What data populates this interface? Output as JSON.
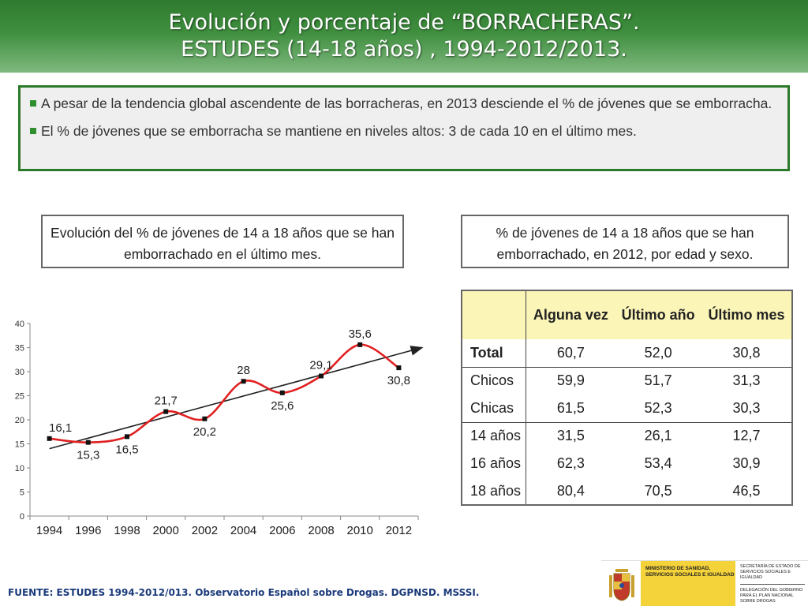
{
  "header": {
    "title_line1": "Evolución y porcentaje de “BORRACHERAS”.",
    "title_line2": "ESTUDES (14-18 años) , 1994-2012/2013."
  },
  "bullets": [
    "A pesar de la tendencia global ascendente de las borracheras, en 2013 desciende el % de jóvenes que se emborracha.",
    "El % de jóvenes que se emborracha se mantiene en niveles altos: 3 de cada 10 en el último mes."
  ],
  "captions": {
    "left": "Evolución del % de jóvenes de 14 a 18 años que se han emborrachado en el último mes.",
    "right": "% de jóvenes de 14 a 18 años que se han emborrachado, en 2012, por edad y sexo."
  },
  "chart_data": {
    "type": "line",
    "title": "",
    "xlabel": "",
    "ylabel": "",
    "x": [
      1994,
      1996,
      1998,
      2000,
      2002,
      2004,
      2006,
      2008,
      2010,
      2012
    ],
    "x_tick_labels": [
      "1994",
      "1996",
      "1998",
      "2000",
      "2002",
      "2004",
      "2006",
      "2008",
      "2010",
      "2012"
    ],
    "y_ticks": [
      0,
      5,
      10,
      15,
      20,
      25,
      30,
      35,
      40
    ],
    "ylim": [
      0,
      40
    ],
    "grid": false,
    "series": [
      {
        "values": [
          16.1,
          15.3,
          16.5,
          21.7,
          20.2,
          28,
          25.6,
          29.1,
          35.6,
          30.8
        ],
        "data_labels": [
          "16,1",
          "15,3",
          "16,5",
          "21,7",
          "20,2",
          "28",
          "25,6",
          "29,1",
          "35,6",
          "30,8"
        ],
        "color": "#e02020",
        "smooth": true
      }
    ],
    "trend_line": {
      "start": 14,
      "end": 35,
      "color": "#222222",
      "arrow": true
    }
  },
  "table": {
    "headers": [
      "",
      "Alguna vez",
      "Último año",
      "Último mes"
    ],
    "header_color": "#fbf5b8",
    "rows": [
      {
        "label": "Total",
        "values": [
          "60,7",
          "52,0",
          "30,8"
        ],
        "bold_label": true
      },
      {
        "label": "Chicos",
        "values": [
          "59,9",
          "51,7",
          "31,3"
        ]
      },
      {
        "label": "Chicas",
        "values": [
          "61,5",
          "52,3",
          "30,3"
        ]
      },
      {
        "label": "14 años",
        "values": [
          "31,5",
          "26,1",
          "12,7"
        ]
      },
      {
        "label": "16 años",
        "values": [
          "62,3",
          "53,4",
          "30,9"
        ]
      },
      {
        "label": "18 años",
        "values": [
          "80,4",
          "70,5",
          "46,5"
        ]
      }
    ]
  },
  "footer": {
    "source": "FUENTE: ESTUDES 1994-2012/013. Observatorio Español sobre Drogas. DGPNSD. MSSSI."
  },
  "logo": {
    "ministry": "MINISTERIO DE SANIDAD, SERVICIOS SOCIALES E IGUALDAD",
    "secretaria": "SECRETARÍA DE ESTADO DE SERVICIOS SOCIALES E IGUALDAD",
    "delegacion": "DELEGACIÓN DEL GOBIERNO PARA EL PLAN NACIONAL SOBRE DROGAS"
  },
  "colors": {
    "header_green": "#2f7a2f",
    "box_border": "#2a7a2a",
    "series_red": "#e02020",
    "footer_blue": "#1a3a7a"
  }
}
